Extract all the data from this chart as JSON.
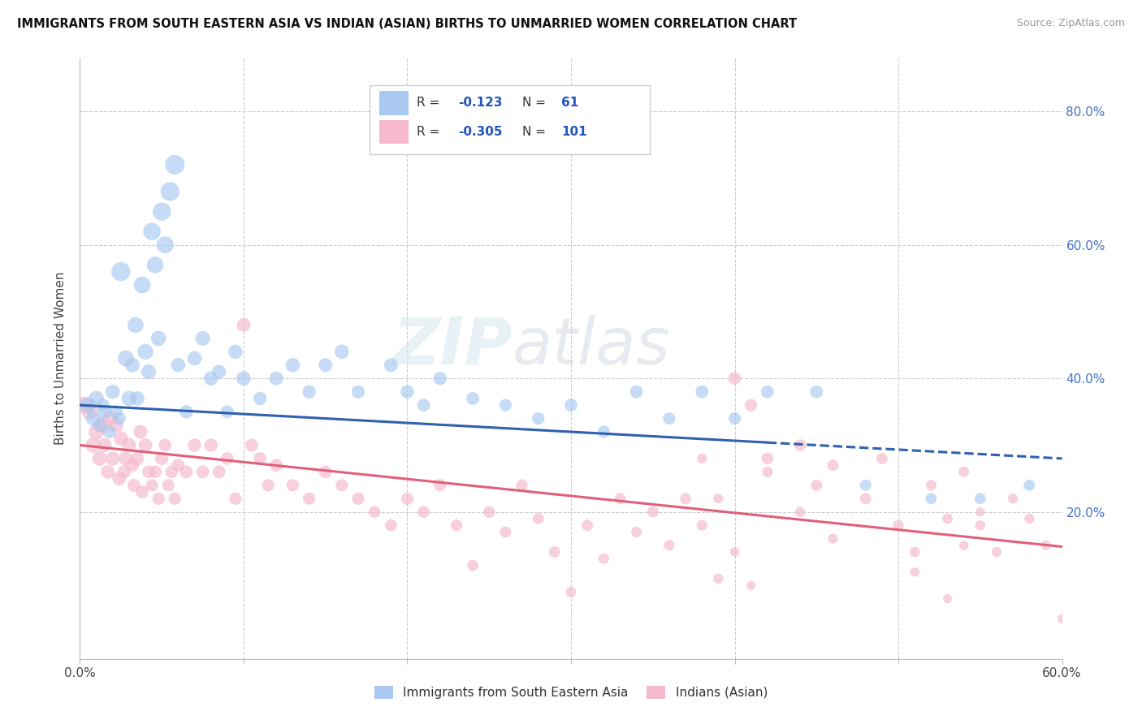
{
  "title": "IMMIGRANTS FROM SOUTH EASTERN ASIA VS INDIAN (ASIAN) BIRTHS TO UNMARRIED WOMEN CORRELATION CHART",
  "source": "Source: ZipAtlas.com",
  "ylabel": "Births to Unmarried Women",
  "xlim": [
    0,
    0.6
  ],
  "ylim": [
    -0.02,
    0.88
  ],
  "xtick_positions": [
    0.0,
    0.1,
    0.2,
    0.3,
    0.4,
    0.5,
    0.6
  ],
  "xticklabels": [
    "0.0%",
    "",
    "",
    "",
    "",
    "",
    "60.0%"
  ],
  "ytick_positions": [
    0.2,
    0.4,
    0.6,
    0.8
  ],
  "ytick_labels": [
    "20.0%",
    "40.0%",
    "60.0%",
    "80.0%"
  ],
  "blue_color": "#A8C8F0",
  "pink_color": "#F5B8CC",
  "blue_line_color": "#3060B0",
  "pink_line_color": "#E0607A",
  "watermark_zip": "ZIP",
  "watermark_atlas": "atlas",
  "legend_label1": "Immigrants from South Eastern Asia",
  "legend_label2": "Indians (Asian)",
  "blue_scatter_x": [
    0.005,
    0.008,
    0.01,
    0.012,
    0.014,
    0.015,
    0.018,
    0.02,
    0.022,
    0.024,
    0.025,
    0.028,
    0.03,
    0.032,
    0.034,
    0.035,
    0.038,
    0.04,
    0.042,
    0.044,
    0.046,
    0.048,
    0.05,
    0.052,
    0.055,
    0.058,
    0.06,
    0.065,
    0.07,
    0.075,
    0.08,
    0.085,
    0.09,
    0.095,
    0.1,
    0.11,
    0.12,
    0.13,
    0.14,
    0.15,
    0.16,
    0.17,
    0.19,
    0.2,
    0.21,
    0.22,
    0.24,
    0.26,
    0.28,
    0.3,
    0.32,
    0.34,
    0.36,
    0.38,
    0.4,
    0.42,
    0.45,
    0.48,
    0.52,
    0.55,
    0.58
  ],
  "blue_scatter_y": [
    0.36,
    0.34,
    0.37,
    0.33,
    0.36,
    0.35,
    0.32,
    0.38,
    0.35,
    0.34,
    0.56,
    0.43,
    0.37,
    0.42,
    0.48,
    0.37,
    0.54,
    0.44,
    0.41,
    0.62,
    0.57,
    0.46,
    0.65,
    0.6,
    0.68,
    0.72,
    0.42,
    0.35,
    0.43,
    0.46,
    0.4,
    0.41,
    0.35,
    0.44,
    0.4,
    0.37,
    0.4,
    0.42,
    0.38,
    0.42,
    0.44,
    0.38,
    0.42,
    0.38,
    0.36,
    0.4,
    0.37,
    0.36,
    0.34,
    0.36,
    0.32,
    0.38,
    0.34,
    0.38,
    0.34,
    0.38,
    0.38,
    0.24,
    0.22,
    0.22,
    0.24
  ],
  "blue_scatter_size": [
    200,
    160,
    180,
    150,
    140,
    170,
    130,
    160,
    140,
    130,
    280,
    200,
    180,
    170,
    200,
    160,
    220,
    190,
    170,
    240,
    220,
    180,
    260,
    230,
    280,
    300,
    160,
    140,
    160,
    170,
    160,
    150,
    130,
    160,
    160,
    140,
    150,
    160,
    140,
    150,
    160,
    140,
    150,
    140,
    130,
    140,
    130,
    120,
    120,
    130,
    120,
    130,
    120,
    130,
    120,
    130,
    130,
    100,
    100,
    100,
    100
  ],
  "pink_scatter_x": [
    0.003,
    0.006,
    0.008,
    0.01,
    0.012,
    0.014,
    0.015,
    0.017,
    0.018,
    0.02,
    0.022,
    0.024,
    0.025,
    0.027,
    0.028,
    0.03,
    0.032,
    0.033,
    0.035,
    0.037,
    0.038,
    0.04,
    0.042,
    0.044,
    0.046,
    0.048,
    0.05,
    0.052,
    0.054,
    0.056,
    0.058,
    0.06,
    0.065,
    0.07,
    0.075,
    0.08,
    0.085,
    0.09,
    0.095,
    0.1,
    0.105,
    0.11,
    0.115,
    0.12,
    0.13,
    0.14,
    0.15,
    0.16,
    0.17,
    0.18,
    0.19,
    0.2,
    0.21,
    0.22,
    0.23,
    0.24,
    0.25,
    0.26,
    0.27,
    0.28,
    0.29,
    0.3,
    0.31,
    0.32,
    0.33,
    0.34,
    0.35,
    0.36,
    0.37,
    0.38,
    0.39,
    0.4,
    0.41,
    0.42,
    0.44,
    0.45,
    0.46,
    0.48,
    0.49,
    0.5,
    0.51,
    0.52,
    0.53,
    0.54,
    0.55,
    0.56,
    0.57,
    0.58,
    0.59,
    0.6,
    0.42,
    0.44,
    0.46,
    0.38,
    0.39,
    0.51,
    0.53,
    0.54,
    0.4,
    0.55,
    0.41
  ],
  "pink_scatter_y": [
    0.36,
    0.35,
    0.3,
    0.32,
    0.28,
    0.33,
    0.3,
    0.26,
    0.34,
    0.28,
    0.33,
    0.25,
    0.31,
    0.26,
    0.28,
    0.3,
    0.27,
    0.24,
    0.28,
    0.32,
    0.23,
    0.3,
    0.26,
    0.24,
    0.26,
    0.22,
    0.28,
    0.3,
    0.24,
    0.26,
    0.22,
    0.27,
    0.26,
    0.3,
    0.26,
    0.3,
    0.26,
    0.28,
    0.22,
    0.48,
    0.3,
    0.28,
    0.24,
    0.27,
    0.24,
    0.22,
    0.26,
    0.24,
    0.22,
    0.2,
    0.18,
    0.22,
    0.2,
    0.24,
    0.18,
    0.12,
    0.2,
    0.17,
    0.24,
    0.19,
    0.14,
    0.08,
    0.18,
    0.13,
    0.22,
    0.17,
    0.2,
    0.15,
    0.22,
    0.18,
    0.1,
    0.4,
    0.36,
    0.28,
    0.3,
    0.24,
    0.27,
    0.22,
    0.28,
    0.18,
    0.14,
    0.24,
    0.19,
    0.26,
    0.18,
    0.14,
    0.22,
    0.19,
    0.15,
    0.04,
    0.26,
    0.2,
    0.16,
    0.28,
    0.22,
    0.11,
    0.07,
    0.15,
    0.14,
    0.2,
    0.09
  ],
  "pink_scatter_size": [
    220,
    200,
    180,
    190,
    170,
    180,
    160,
    150,
    180,
    160,
    170,
    150,
    160,
    140,
    150,
    160,
    140,
    130,
    150,
    150,
    130,
    150,
    130,
    120,
    130,
    120,
    140,
    130,
    120,
    130,
    120,
    130,
    130,
    140,
    130,
    140,
    130,
    130,
    120,
    150,
    130,
    130,
    120,
    130,
    120,
    120,
    130,
    120,
    120,
    110,
    110,
    120,
    110,
    120,
    110,
    100,
    110,
    100,
    110,
    100,
    100,
    90,
    100,
    90,
    100,
    90,
    100,
    90,
    100,
    90,
    80,
    130,
    120,
    110,
    110,
    100,
    100,
    100,
    100,
    90,
    85,
    90,
    85,
    90,
    85,
    80,
    80,
    80,
    75,
    70,
    90,
    80,
    75,
    80,
    75,
    70,
    65,
    70,
    70,
    65,
    65
  ],
  "blue_trend_x0": 0.0,
  "blue_trend_x_solid_end": 0.42,
  "blue_trend_x1": 0.6,
  "blue_trend_y0": 0.36,
  "blue_trend_y1": 0.28,
  "pink_trend_x0": 0.0,
  "pink_trend_x1": 0.6,
  "pink_trend_y0": 0.3,
  "pink_trend_y1": 0.148,
  "grid_color": "#CCCCCC",
  "bg_color": "#FFFFFF"
}
